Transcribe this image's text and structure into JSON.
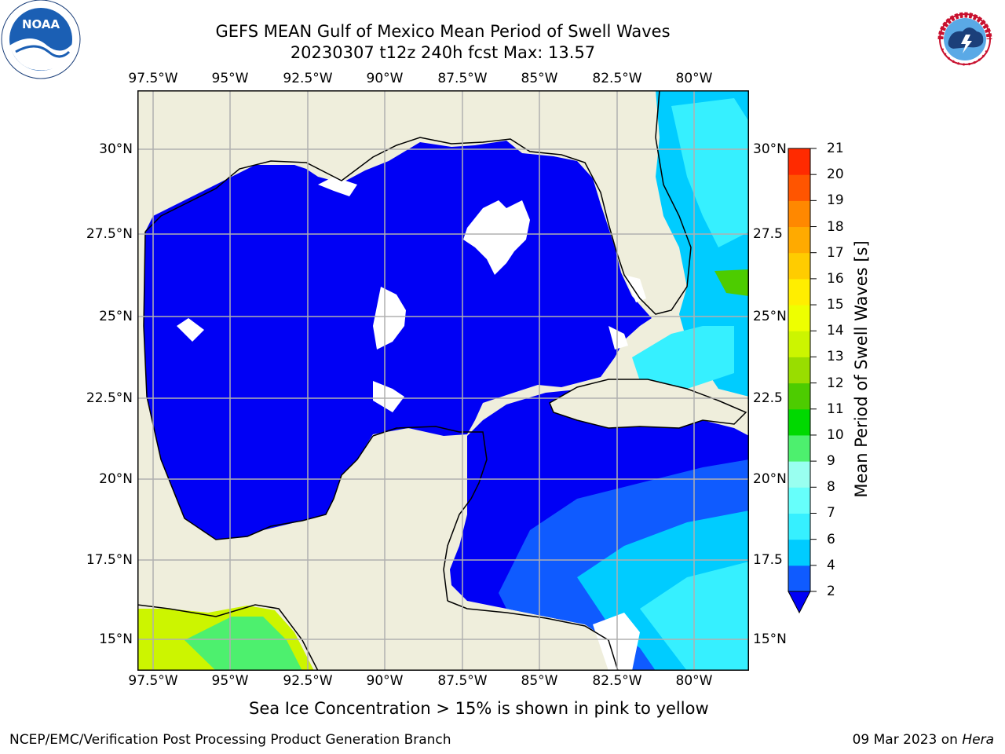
{
  "title": {
    "line1": "GEFS MEAN Gulf of Mexico Mean Period of Swell Waves",
    "line2": "20230307 t12z 240h fcst   Max: 13.57"
  },
  "map": {
    "lon_ticks": [
      "97.5°W",
      "95°W",
      "92.5°W",
      "90°W",
      "87.5°W",
      "85°W",
      "82.5°W",
      "80°W"
    ],
    "lon_values": [
      -97.5,
      -95,
      -92.5,
      -90,
      -87.5,
      -85,
      -82.5,
      -80
    ],
    "lat_ticks_left": [
      "30°N",
      "27.5°N",
      "25°N",
      "22.5°N",
      "20°N",
      "17.5°N",
      "15°N"
    ],
    "lat_ticks_right": [
      "30°N",
      "27.5",
      "25°N",
      "22.5",
      "20°N",
      "17.5",
      "15°N"
    ],
    "lat_values": [
      30,
      27.5,
      25,
      22.5,
      20,
      17.5,
      15
    ],
    "lon_range": [
      -98,
      -78.2
    ],
    "lat_range": [
      14,
      31.8
    ],
    "colors": {
      "land": "#efeedc",
      "ocean_low": "#0000f5",
      "grid": "#b0b0b0"
    }
  },
  "colorbar": {
    "label": "Mean Period of Swell Waves [s]",
    "ticks": [
      "2",
      "4",
      "6",
      "7",
      "8",
      "9",
      "10",
      "11",
      "12",
      "13",
      "14",
      "15",
      "16",
      "17",
      "18",
      "19",
      "20",
      "21"
    ],
    "colors": [
      "#0f5bff",
      "#00ccff",
      "#36f0ff",
      "#66fffb",
      "#99fff0",
      "#4df06e",
      "#00d900",
      "#4dcc00",
      "#99dd00",
      "#ccf500",
      "#eeff00",
      "#ffee00",
      "#ffcc00",
      "#ffaa00",
      "#ff8800",
      "#ff5500",
      "#ff2a00",
      "#ff0000"
    ]
  },
  "logos": {
    "left": "noar-logo",
    "left_text": "NOAA",
    "right": "nws-logo",
    "right_text": "NATIONAL WEATHER SERVICE"
  },
  "note": "Sea Ice Concentration > 15% is shown in pink to yellow",
  "footer": {
    "left": "NCEP/EMC/Verification Post Processing Product Generation Branch",
    "date": "09 Mar 2023 on ",
    "machine": "Hera"
  }
}
